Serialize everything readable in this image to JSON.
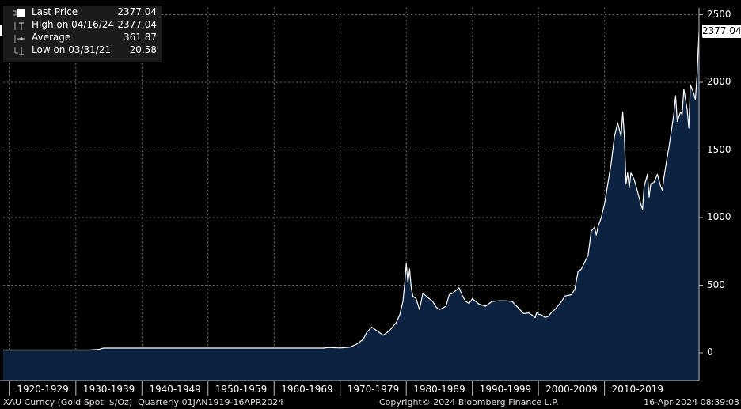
{
  "legend": {
    "rows": [
      {
        "label": "Last Price",
        "value": "2377.04",
        "icon": "filled-square-icon"
      },
      {
        "label": "High on 04/16/24",
        "value": "2377.04",
        "icon": "high-marker-icon"
      },
      {
        "label": "Average",
        "value": "361.87",
        "icon": "average-line-icon"
      },
      {
        "label": "Low on 03/31/21",
        "value": "20.58",
        "icon": "low-marker-icon"
      }
    ]
  },
  "last_price_badge": "2377.04",
  "footer": {
    "left": "XAU Curncy (Gold Spot  $/Oz)  Quarterly 01JAN1919-16APR2024",
    "middle": "Copyright© 2024 Bloomberg Finance L.P.",
    "right": "16-Apr-2024 08:39:03"
  },
  "colors": {
    "background": "#000000",
    "area_fill": "#0b2240",
    "line": "#ffffff",
    "grid": "#6a6a6a"
  },
  "chart_data": {
    "type": "area",
    "title": "",
    "xlabel": "",
    "ylabel": "",
    "x_range": [
      1919.0,
      2024.3
    ],
    "ylim": [
      -100,
      2550
    ],
    "yticks": [
      0,
      500,
      1000,
      1500,
      2000,
      2500
    ],
    "ytick_labels": [
      "0",
      "500",
      "1000",
      "1500",
      "2000",
      "2500"
    ],
    "xtick_labels": [
      "1920-1929",
      "1930-1939",
      "1940-1949",
      "1950-1959",
      "1960-1969",
      "1970-1979",
      "1980-1989",
      "1990-1999",
      "2000-2009",
      "2010-2019"
    ],
    "xtick_starts": [
      1920,
      1930,
      1940,
      1950,
      1960,
      1970,
      1980,
      1990,
      2000,
      2010
    ],
    "grid": true,
    "legend_position": "top-left",
    "series": [
      {
        "name": "Last Price",
        "x": [
          1919.0,
          1925.0,
          1932.0,
          1933.5,
          1934.2,
          1940.0,
          1950.0,
          1960.0,
          1967.5,
          1968.2,
          1970.0,
          1971.5,
          1972.5,
          1973.5,
          1974.0,
          1974.75,
          1975.5,
          1976.5,
          1977.5,
          1978.5,
          1979.0,
          1979.5,
          1979.75,
          1980.0,
          1980.25,
          1980.5,
          1980.75,
          1981.0,
          1981.5,
          1982.0,
          1982.5,
          1983.0,
          1983.5,
          1984.0,
          1984.5,
          1985.0,
          1985.5,
          1986.0,
          1986.5,
          1987.0,
          1987.5,
          1988.0,
          1988.5,
          1989.0,
          1989.5,
          1990.0,
          1991.0,
          1992.0,
          1993.0,
          1994.0,
          1995.0,
          1996.0,
          1997.0,
          1997.75,
          1998.5,
          1999.0,
          1999.5,
          1999.75,
          2000.0,
          2000.5,
          2001.0,
          2001.5,
          2002.0,
          2002.5,
          2003.0,
          2003.5,
          2004.0,
          2005.0,
          2005.5,
          2006.0,
          2006.5,
          2007.0,
          2007.5,
          2008.0,
          2008.5,
          2008.75,
          2009.0,
          2009.5,
          2010.0,
          2010.5,
          2011.0,
          2011.5,
          2011.75,
          2012.0,
          2012.5,
          2012.75,
          2013.0,
          2013.25,
          2013.5,
          2013.75,
          2014.0,
          2014.5,
          2015.0,
          2015.5,
          2015.75,
          2016.0,
          2016.5,
          2016.75,
          2017.0,
          2017.5,
          2018.0,
          2018.5,
          2018.75,
          2019.0,
          2019.5,
          2019.75,
          2020.0,
          2020.5,
          2020.75,
          2021.0,
          2021.5,
          2021.75,
          2022.0,
          2022.5,
          2022.75,
          2023.0,
          2023.5,
          2023.75,
          2024.0,
          2024.3
        ],
        "y": [
          20.67,
          20.67,
          20.67,
          26.0,
          35.0,
          35.0,
          35.0,
          35.3,
          35.2,
          40.0,
          36.0,
          42.0,
          65.0,
          100.0,
          150.0,
          190.0,
          165.0,
          130.0,
          165.0,
          225.0,
          280.0,
          380.0,
          500.0,
          660.0,
          520.0,
          620.0,
          480.0,
          420.0,
          400.0,
          320.0,
          440.0,
          420.0,
          400.0,
          380.0,
          340.0,
          320.0,
          330.0,
          345.0,
          430.0,
          440.0,
          460.0,
          480.0,
          420.0,
          380.0,
          365.0,
          400.0,
          360.0,
          345.0,
          380.0,
          385.0,
          385.0,
          380.0,
          330.0,
          290.0,
          295.0,
          280.0,
          260.0,
          300.0,
          285.0,
          280.0,
          260.0,
          270.0,
          300.0,
          320.0,
          350.0,
          380.0,
          420.0,
          430.0,
          470.0,
          600.0,
          620.0,
          670.0,
          720.0,
          900.0,
          930.0,
          870.0,
          930.0,
          1000.0,
          1100.0,
          1250.0,
          1400.0,
          1600.0,
          1650.0,
          1700.0,
          1600.0,
          1780.0,
          1600.0,
          1250.0,
          1330.0,
          1220.0,
          1330.0,
          1280.0,
          1190.0,
          1100.0,
          1060.0,
          1230.0,
          1320.0,
          1150.0,
          1250.0,
          1260.0,
          1320.0,
          1230.0,
          1200.0,
          1300.0,
          1450.0,
          1520.0,
          1600.0,
          1770.0,
          1900.0,
          1710.0,
          1780.0,
          1760.0,
          1950.0,
          1800.0,
          1660.0,
          1980.0,
          1920.0,
          1870.0,
          2050.0,
          2377.04
        ]
      }
    ]
  }
}
